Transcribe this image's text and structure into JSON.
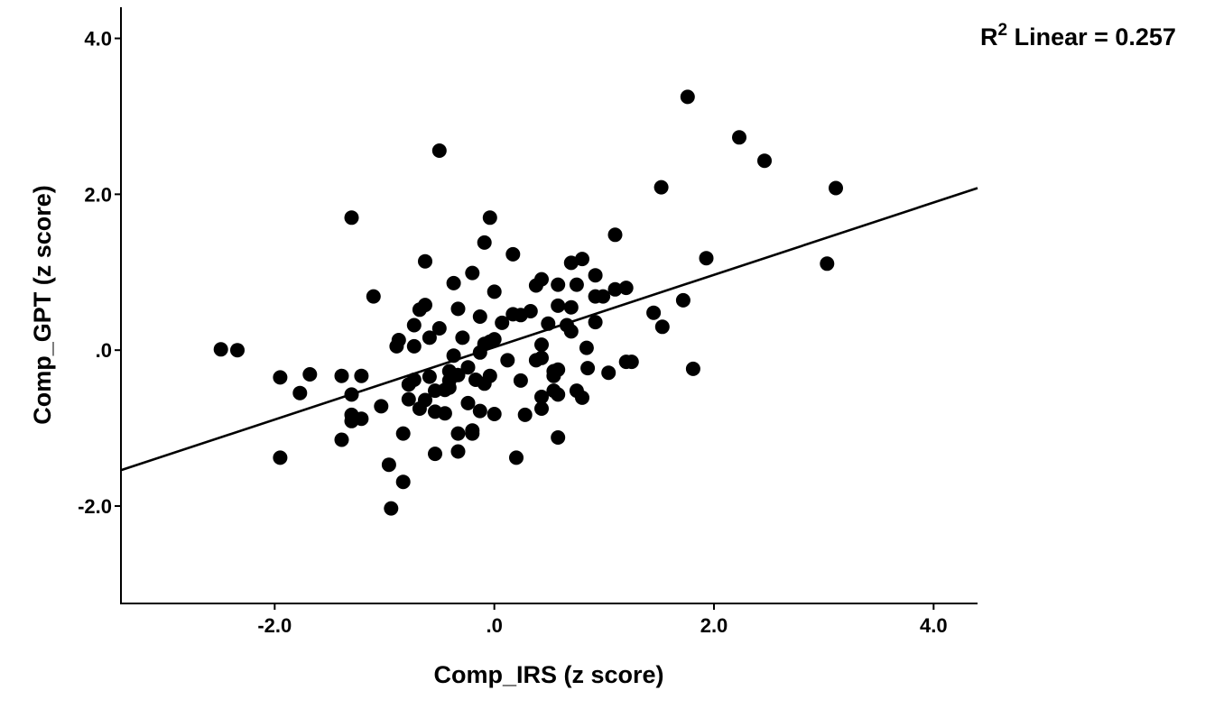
{
  "chart_data": {
    "type": "scatter",
    "xlabel": "Comp_IRS (z score)",
    "ylabel": "Comp_GPT (z score)",
    "xlim": [
      -3.4,
      4.4
    ],
    "ylim": [
      -3.25,
      4.4
    ],
    "xticks": [
      -2.0,
      0.0,
      2.0,
      4.0
    ],
    "yticks": [
      -2.0,
      0.0,
      2.0,
      4.0
    ],
    "xtick_labels": [
      "-2.0",
      ".0",
      "2.0",
      "4.0"
    ],
    "ytick_labels": [
      "-2.0",
      ".0",
      "2.0",
      "4.0"
    ],
    "grid": false,
    "marker_color": "#000000",
    "fit_line": {
      "type": "linear",
      "x_range": [
        -3.4,
        4.4
      ],
      "y_range": [
        -1.54,
        2.08
      ],
      "r2_prefix": "R",
      "r2_superscript": "2",
      "r2_text": " Linear = 0.257"
    },
    "points": [
      [
        -2.49,
        0.01
      ],
      [
        -2.34,
        0.0
      ],
      [
        -1.95,
        -0.35
      ],
      [
        -1.95,
        -1.38
      ],
      [
        -1.77,
        -0.55
      ],
      [
        -1.68,
        -0.31
      ],
      [
        -1.39,
        -0.33
      ],
      [
        -1.39,
        -1.15
      ],
      [
        -1.3,
        1.7
      ],
      [
        -1.3,
        -0.57
      ],
      [
        -1.3,
        -0.83
      ],
      [
        -1.3,
        -0.91
      ],
      [
        -1.21,
        -0.33
      ],
      [
        -1.21,
        -0.88
      ],
      [
        -1.1,
        0.69
      ],
      [
        -1.03,
        -0.72
      ],
      [
        -0.96,
        -1.47
      ],
      [
        -0.94,
        -2.03
      ],
      [
        -0.89,
        0.05
      ],
      [
        -0.87,
        0.13
      ],
      [
        -0.83,
        -1.07
      ],
      [
        -0.83,
        -1.69
      ],
      [
        -0.78,
        -0.44
      ],
      [
        -0.78,
        -0.63
      ],
      [
        -0.73,
        0.32
      ],
      [
        -0.73,
        0.05
      ],
      [
        -0.73,
        -0.38
      ],
      [
        -0.68,
        0.52
      ],
      [
        -0.68,
        -0.75
      ],
      [
        -0.63,
        1.14
      ],
      [
        -0.63,
        0.58
      ],
      [
        -0.63,
        -0.64
      ],
      [
        -0.59,
        0.16
      ],
      [
        -0.59,
        -0.34
      ],
      [
        -0.54,
        -0.52
      ],
      [
        -0.54,
        -0.79
      ],
      [
        -0.54,
        -1.33
      ],
      [
        -0.5,
        0.28
      ],
      [
        -0.5,
        2.56
      ],
      [
        -0.45,
        -0.51
      ],
      [
        -0.45,
        -0.81
      ],
      [
        -0.41,
        -0.27
      ],
      [
        -0.41,
        -0.39
      ],
      [
        -0.41,
        -0.48
      ],
      [
        -0.37,
        0.86
      ],
      [
        -0.37,
        -0.07
      ],
      [
        -0.33,
        0.53
      ],
      [
        -0.33,
        -0.32
      ],
      [
        -0.33,
        -1.07
      ],
      [
        -0.33,
        -1.3
      ],
      [
        -0.29,
        0.16
      ],
      [
        -0.24,
        -0.68
      ],
      [
        -0.24,
        -0.22
      ],
      [
        -0.2,
        0.99
      ],
      [
        -0.2,
        -1.03
      ],
      [
        -0.2,
        -1.07
      ],
      [
        -0.17,
        -0.38
      ],
      [
        -0.13,
        0.43
      ],
      [
        -0.13,
        -0.03
      ],
      [
        -0.13,
        -0.78
      ],
      [
        -0.09,
        1.38
      ],
      [
        -0.09,
        0.08
      ],
      [
        -0.09,
        -0.43
      ],
      [
        -0.04,
        1.7
      ],
      [
        -0.04,
        0.11
      ],
      [
        -0.04,
        -0.33
      ],
      [
        0.0,
        0.75
      ],
      [
        0.0,
        0.14
      ],
      [
        0.0,
        -0.82
      ],
      [
        0.07,
        0.35
      ],
      [
        0.12,
        -0.13
      ],
      [
        0.17,
        1.23
      ],
      [
        0.17,
        0.46
      ],
      [
        0.2,
        -1.38
      ],
      [
        0.24,
        0.45
      ],
      [
        0.24,
        -0.39
      ],
      [
        0.28,
        -0.83
      ],
      [
        0.33,
        0.5
      ],
      [
        0.38,
        0.83
      ],
      [
        0.38,
        -0.13
      ],
      [
        0.43,
        0.91
      ],
      [
        0.43,
        0.07
      ],
      [
        0.43,
        -0.75
      ],
      [
        0.43,
        -0.1
      ],
      [
        0.43,
        -0.6
      ],
      [
        0.49,
        0.34
      ],
      [
        0.54,
        -0.27
      ],
      [
        0.54,
        -0.52
      ],
      [
        0.54,
        -0.33
      ],
      [
        0.58,
        0.84
      ],
      [
        0.58,
        0.57
      ],
      [
        0.58,
        -0.25
      ],
      [
        0.58,
        -0.57
      ],
      [
        0.58,
        -1.12
      ],
      [
        0.66,
        0.32
      ],
      [
        0.7,
        1.12
      ],
      [
        0.7,
        0.55
      ],
      [
        0.7,
        0.24
      ],
      [
        0.75,
        0.84
      ],
      [
        0.75,
        -0.52
      ],
      [
        0.8,
        1.17
      ],
      [
        0.8,
        -0.61
      ],
      [
        0.84,
        0.03
      ],
      [
        0.85,
        -0.23
      ],
      [
        0.92,
        0.96
      ],
      [
        0.92,
        0.69
      ],
      [
        0.92,
        0.36
      ],
      [
        0.99,
        0.69
      ],
      [
        1.04,
        -0.29
      ],
      [
        1.1,
        1.48
      ],
      [
        1.1,
        0.78
      ],
      [
        1.2,
        0.8
      ],
      [
        1.2,
        -0.15
      ],
      [
        1.25,
        -0.15
      ],
      [
        1.45,
        0.48
      ],
      [
        1.52,
        2.09
      ],
      [
        1.53,
        0.3
      ],
      [
        1.72,
        0.64
      ],
      [
        1.76,
        3.25
      ],
      [
        1.81,
        -0.24
      ],
      [
        1.93,
        1.18
      ],
      [
        2.23,
        2.73
      ],
      [
        2.46,
        2.43
      ],
      [
        3.03,
        1.11
      ],
      [
        3.11,
        2.08
      ]
    ]
  }
}
